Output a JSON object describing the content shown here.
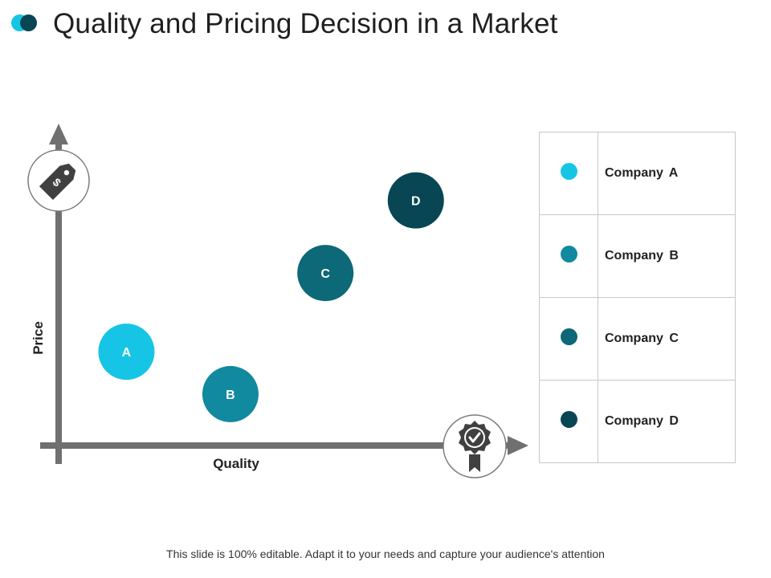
{
  "slide": {
    "title": "Quality and Pricing Decision in a Market",
    "footer": "This slide is 100% editable. Adapt it to your needs and capture your audience's attention"
  },
  "colors": {
    "company_a": "#16c5e5",
    "company_b": "#11899f",
    "company_c": "#0d6877",
    "company_d": "#084654",
    "axis": "#707070",
    "icon_ring": "#7a7a7a",
    "icon_fill": "#404040"
  },
  "icons": {
    "y_axis_icon": "price-tag-icon",
    "x_axis_icon": "quality-badge-icon"
  },
  "chart_data": {
    "type": "scatter",
    "title": "",
    "xlabel": "Quality",
    "ylabel": "Price",
    "xlim": [
      0,
      10
    ],
    "ylim": [
      0,
      10
    ],
    "grid": false,
    "legend_position": "right",
    "points": [
      {
        "label": "A",
        "name": "Company A",
        "x": 1.5,
        "y": 3.1,
        "color": "#16c5e5"
      },
      {
        "label": "B",
        "name": "Company B",
        "x": 3.8,
        "y": 1.7,
        "color": "#11899f"
      },
      {
        "label": "C",
        "name": "Company C",
        "x": 5.9,
        "y": 5.7,
        "color": "#0d6877"
      },
      {
        "label": "D",
        "name": "Company D",
        "x": 7.9,
        "y": 8.1,
        "color": "#084654"
      }
    ]
  },
  "legend": {
    "items": [
      {
        "label": "Company A",
        "color": "#16c5e5"
      },
      {
        "label": "Company B",
        "color": "#11899f"
      },
      {
        "label": "Company C",
        "color": "#0d6877"
      },
      {
        "label": "Company D",
        "color": "#084654"
      }
    ]
  }
}
